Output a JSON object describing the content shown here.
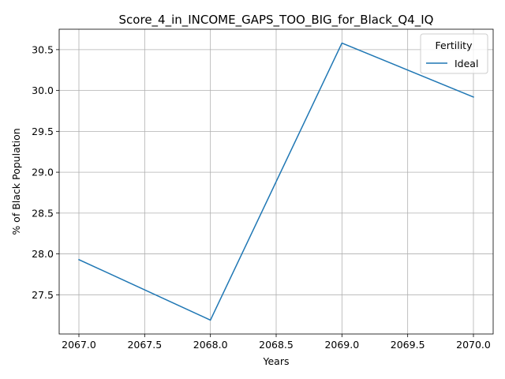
{
  "chart_data": {
    "type": "line",
    "title": "Score_4_in_INCOME_GAPS_TOO_BIG_for_Black_Q4_IQ",
    "xlabel": "Years",
    "ylabel": "% of Black Population",
    "x": [
      2067,
      2068,
      2069,
      2070
    ],
    "series": [
      {
        "name": "Ideal",
        "color": "#1f77b4",
        "values": [
          27.93,
          27.19,
          30.58,
          29.92
        ]
      }
    ],
    "xlim": [
      2066.85,
      2070.15
    ],
    "ylim": [
      27.02,
      30.75
    ],
    "xticks": [
      2067.0,
      2067.5,
      2068.0,
      2068.5,
      2069.0,
      2069.5,
      2070.0
    ],
    "xtick_labels": [
      "2067.0",
      "2067.5",
      "2068.0",
      "2068.5",
      "2069.0",
      "2069.5",
      "2070.0"
    ],
    "yticks": [
      27.5,
      28.0,
      28.5,
      29.0,
      29.5,
      30.0,
      30.5
    ],
    "ytick_labels": [
      "27.5",
      "28.0",
      "28.5",
      "29.0",
      "29.5",
      "30.0",
      "30.5"
    ],
    "grid": true,
    "legend": {
      "title": "Fertility",
      "position": "top-right"
    }
  }
}
